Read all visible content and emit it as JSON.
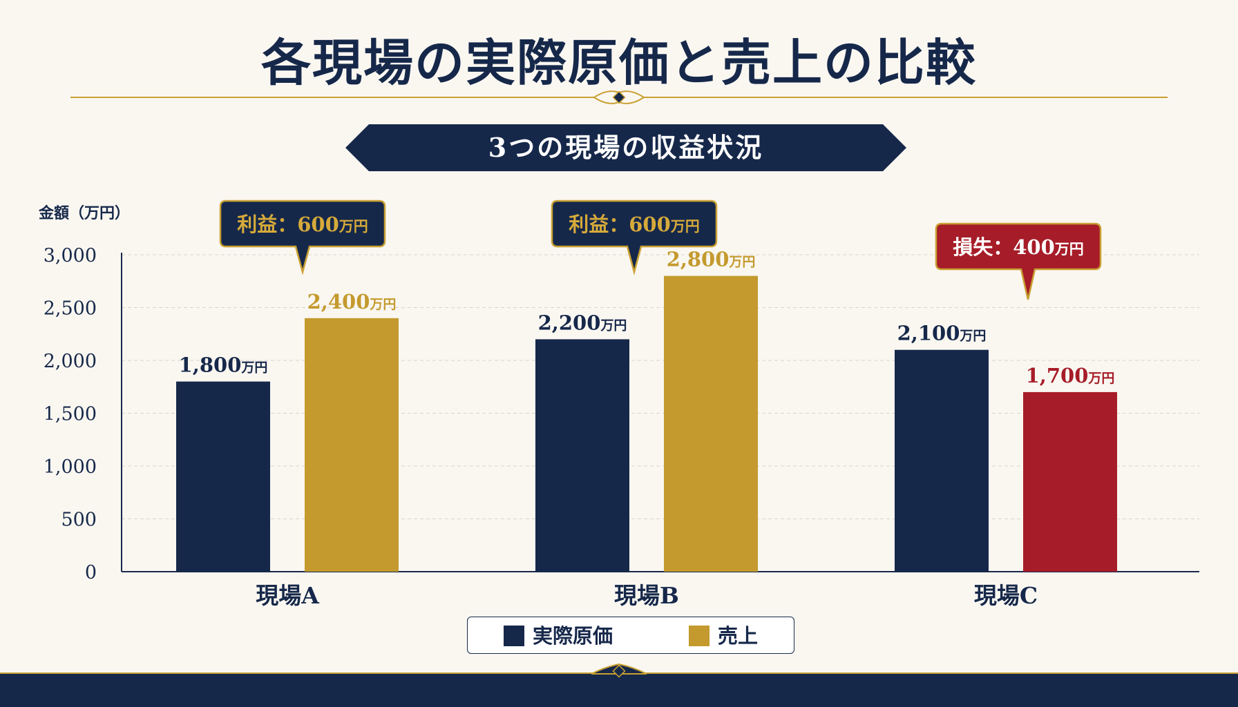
{
  "title": "各現場の実際原価と売上の比較",
  "subtitle": "3つの現場の収益状況",
  "colors": {
    "navy": "#16284a",
    "gold": "#c49a2e",
    "red": "#a61c28",
    "background": "#faf7f1",
    "grid": "#d8d4cc"
  },
  "chart_data": {
    "type": "bar",
    "ylabel": "金額（万円）",
    "ylim": [
      0,
      3000
    ],
    "yticks": [
      "0",
      "500",
      "1,000",
      "1,500",
      "2,000",
      "2,500",
      "3,000"
    ],
    "ytick_values": [
      0,
      500,
      1000,
      1500,
      2000,
      2500,
      3000
    ],
    "grid": true,
    "legend_position": "bottom-center",
    "categories": [
      "現場A",
      "現場B",
      "現場C"
    ],
    "series": [
      {
        "name": "実際原価",
        "color": "#16284a",
        "values": [
          1800,
          2200,
          2100
        ],
        "labels": [
          "1,800",
          "2,200",
          "2,100"
        ]
      },
      {
        "name": "売上",
        "color": "#c49a2e",
        "values": [
          2400,
          2800,
          1700
        ],
        "labels": [
          "2,400",
          "2,800",
          "1,700"
        ],
        "bar_colors": [
          "#c49a2e",
          "#c49a2e",
          "#a61c28"
        ]
      }
    ],
    "value_unit": "万円",
    "annotations": [
      {
        "text": "利益：600",
        "unit": "万円",
        "category": "現場A",
        "kind": "profit"
      },
      {
        "text": "利益：600",
        "unit": "万円",
        "category": "現場B",
        "kind": "profit"
      },
      {
        "text": "損失：400",
        "unit": "万円",
        "category": "現場C",
        "kind": "loss"
      }
    ]
  }
}
